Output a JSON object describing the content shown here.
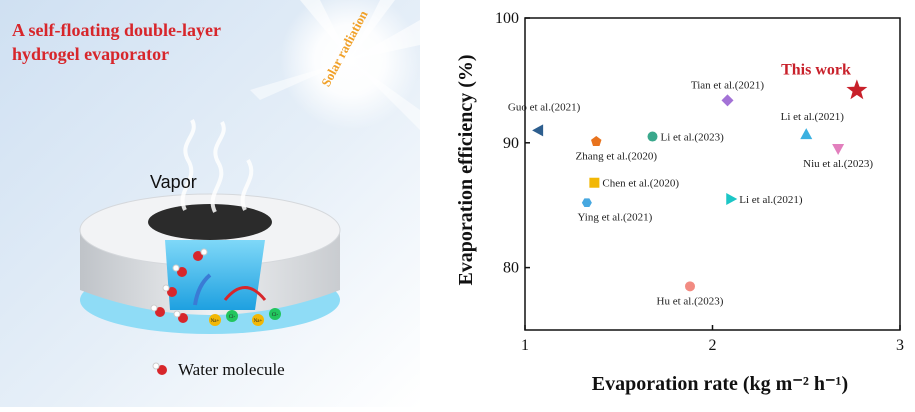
{
  "illustration": {
    "title_line1": "A self-floating double-layer",
    "title_line2": "hydrogel evaporator",
    "solar_label": "Solar radiation",
    "vapor_label": "Vapor",
    "water_molecule_label": "Water molecule",
    "ion_labels": [
      "Na+",
      "Cl-",
      "Na+",
      "Cl-"
    ]
  },
  "chart_data": {
    "type": "scatter",
    "xlabel": "Evaporation rate (kg m⁻² h⁻¹)",
    "ylabel": "Evaporation efficiency (%)",
    "xlim": [
      1,
      3
    ],
    "ylim": [
      75,
      100
    ],
    "xticks": [
      1,
      2,
      3
    ],
    "yticks": [
      80,
      90,
      100
    ],
    "grid": false,
    "points": [
      {
        "label": "This work",
        "x": 2.77,
        "y": 94.2,
        "marker": "star",
        "color": "#c8202a"
      },
      {
        "label": "Tian et al.(2021)",
        "x": 2.08,
        "y": 93.4,
        "marker": "diamond",
        "color": "#a372d6"
      },
      {
        "label": "Guo et al.(2021)",
        "x": 1.07,
        "y": 91.0,
        "marker": "triangle-left",
        "color": "#2d5e8e"
      },
      {
        "label": "Li et al.(2023)",
        "x": 1.68,
        "y": 90.5,
        "marker": "circle",
        "color": "#3aa88c"
      },
      {
        "label": "Li et al.(2021)",
        "x": 2.5,
        "y": 90.7,
        "marker": "triangle-up",
        "color": "#3bb0e0"
      },
      {
        "label": "Zhang et al.(2020)",
        "x": 1.38,
        "y": 90.1,
        "marker": "pentagon",
        "color": "#e8731e"
      },
      {
        "label": "Niu et al.(2023)",
        "x": 2.67,
        "y": 89.5,
        "marker": "triangle-down",
        "color": "#e27fbd"
      },
      {
        "label": "Chen et al.(2020)",
        "x": 1.37,
        "y": 86.8,
        "marker": "square",
        "color": "#f2b705"
      },
      {
        "label": "Ying et al.(2021)",
        "x": 1.33,
        "y": 85.2,
        "marker": "hexagon",
        "color": "#47a8e0"
      },
      {
        "label": "Li et al.(2021)",
        "x": 2.1,
        "y": 85.5,
        "marker": "triangle-right",
        "color": "#1cc6c6"
      },
      {
        "label": "Hu et al.(2023)",
        "x": 1.88,
        "y": 78.5,
        "marker": "circle",
        "color": "#f28b82"
      }
    ]
  }
}
